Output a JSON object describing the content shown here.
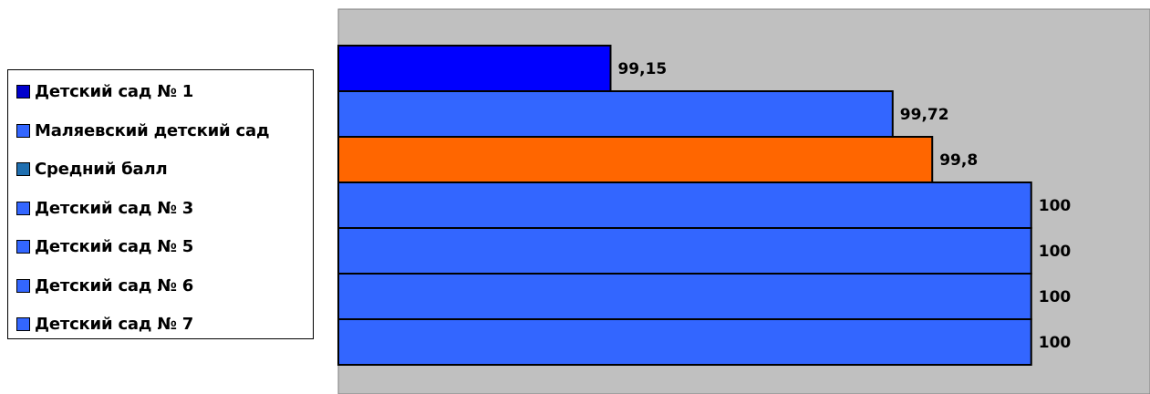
{
  "chart_data": {
    "type": "bar",
    "orientation": "horizontal",
    "categories": [
      "Детский сад № 1",
      "Маляевский детский сад",
      "Средний балл",
      "Детский сад № 3",
      "Детский сад № 5",
      "Детский сад № 6",
      "Детский сад № 7"
    ],
    "values": [
      99.15,
      99.72,
      99.8,
      100,
      100,
      100,
      100
    ],
    "value_labels": [
      "99,15",
      "99,72",
      "99,8",
      "100",
      "100",
      "100",
      "100"
    ],
    "bar_colors": [
      "#0000FF",
      "#3366FF",
      "#FF6600",
      "#3366FF",
      "#3366FF",
      "#3366FF",
      "#3366FF"
    ],
    "legend_colors": [
      "#0000CC",
      "#3366FF",
      "#1F6FB0",
      "#3366FF",
      "#3366FF",
      "#3366FF",
      "#3366FF"
    ],
    "xlim": [
      98.6,
      100.24
    ],
    "plot_background": "#C0C0C0",
    "grid": false,
    "legend_position": "left"
  }
}
